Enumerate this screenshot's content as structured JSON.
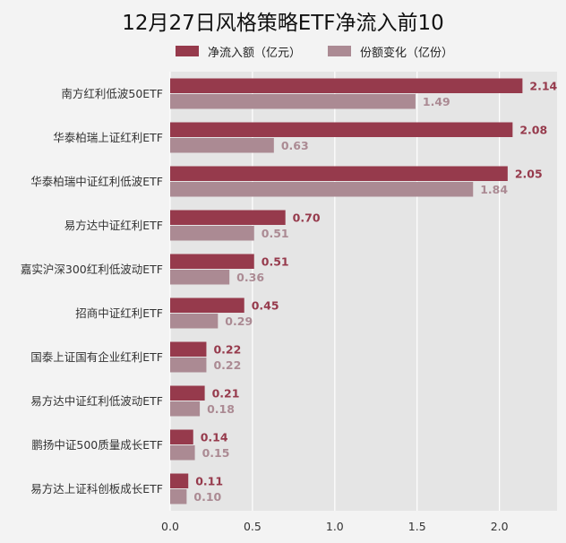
{
  "chart_data": {
    "type": "bar",
    "orientation": "horizontal",
    "title": "12月27日风格策略ETF净流入前10",
    "categories": [
      "南方红利低波50ETF",
      "华泰柏瑞上证红利ETF",
      "华泰柏瑞中证红利低波ETF",
      "易方达中证红利ETF",
      "嘉实沪深300红利低波动ETF",
      "招商中证红利ETF",
      "国泰上证国有企业红利ETF",
      "易方达中证红利低波动ETF",
      "鹏扬中证500质量成长ETF",
      "易方达上证科创板成长ETF"
    ],
    "series": [
      {
        "name": "净流入额（亿元）",
        "color": "#963a4c",
        "values": [
          2.14,
          2.08,
          2.05,
          0.7,
          0.51,
          0.45,
          0.22,
          0.21,
          0.14,
          0.11
        ],
        "labels": [
          "2.14",
          "2.08",
          "2.05",
          "0.70",
          "0.51",
          "0.45",
          "0.22",
          "0.21",
          "0.14",
          "0.11"
        ]
      },
      {
        "name": "份额变化（亿份）",
        "color": "#ab8a93",
        "values": [
          1.49,
          0.63,
          1.84,
          0.51,
          0.36,
          0.29,
          0.22,
          0.18,
          0.15,
          0.1
        ],
        "labels": [
          "1.49",
          "0.63",
          "1.84",
          "0.51",
          "0.36",
          "0.29",
          "0.22",
          "0.18",
          "0.15",
          "0.10"
        ]
      }
    ],
    "xlim": [
      0,
      2.35
    ],
    "xticks": [
      "0.0",
      "0.5",
      "1.0",
      "1.5",
      "2.0"
    ],
    "grid": true,
    "legend_position": "top",
    "plot_background": "#e5e5e5",
    "grid_color": "#ffffff"
  }
}
